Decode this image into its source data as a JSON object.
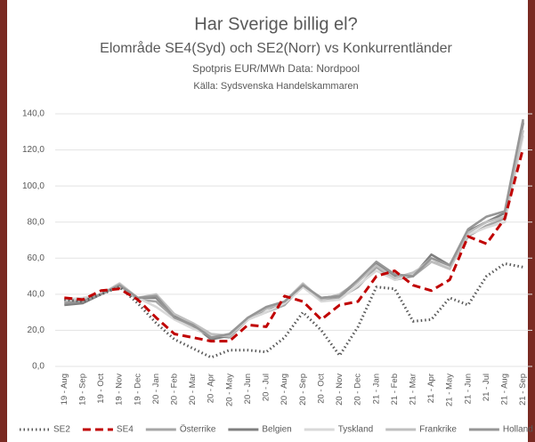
{
  "chart_data": {
    "type": "line",
    "title": "Har Sverige billig el?",
    "subtitle": "Elområde SE4(Syd) och SE2(Norr) vs Konkurrentländer",
    "y_label": "Spotpris EUR/MWh Data: Nordpool",
    "source": "Källa: Sydsvenska Handelskammaren",
    "categories": [
      "19 - Aug",
      "19 - Sep",
      "19 - Oct",
      "19 - Nov",
      "19 - Dec",
      "20 - Jan",
      "20 - Feb",
      "20 - Mar",
      "20 - Apr",
      "20 - May",
      "20 - Jun",
      "20 - Jul",
      "20 - Aug",
      "20 - Sep",
      "20 - Oct",
      "20 - Nov",
      "20 - Dec",
      "21 - Jan",
      "21 - Feb",
      "21 - Mar",
      "21 - Apr",
      "21 - May",
      "21 - Jun",
      "21 - Jul",
      "21 - Aug",
      "21 - Sep"
    ],
    "ylim": [
      0,
      140
    ],
    "yticks": [
      {
        "value": 0,
        "label": "0,0"
      },
      {
        "value": 20,
        "label": "20,0"
      },
      {
        "value": 40,
        "label": "40,0"
      },
      {
        "value": 60,
        "label": "60,0"
      },
      {
        "value": 80,
        "label": "80,0"
      },
      {
        "value": 100,
        "label": "100,0"
      },
      {
        "value": 120,
        "label": "120,0"
      },
      {
        "value": 140,
        "label": "140,0"
      }
    ],
    "grid": true,
    "legend": "bottom",
    "series": [
      {
        "name": "Österrike",
        "color": "#a6a6a6",
        "dash": "solid",
        "values": [
          36,
          37,
          40,
          45,
          37,
          36,
          27,
          22,
          17,
          16,
          26,
          30,
          34,
          45,
          37,
          38,
          44,
          55,
          48,
          50,
          58,
          55,
          72,
          78,
          82,
          136
        ]
      },
      {
        "name": "Belgien",
        "color": "#7f7f7f",
        "dash": "solid",
        "values": [
          34,
          35,
          40,
          45,
          38,
          38,
          28,
          23,
          15,
          17,
          26,
          32,
          35,
          44,
          38,
          39,
          47,
          57,
          50,
          50,
          62,
          56,
          75,
          80,
          85,
          135
        ]
      },
      {
        "name": "Tyskland",
        "color": "#d9d9d9",
        "dash": "solid",
        "values": [
          37,
          38,
          40,
          44,
          38,
          33,
          26,
          21,
          17,
          17,
          26,
          30,
          35,
          44,
          36,
          37,
          45,
          53,
          48,
          51,
          60,
          55,
          73,
          77,
          80,
          128
        ]
      },
      {
        "name": "Frankrike",
        "color": "#bfbfbf",
        "dash": "solid",
        "values": [
          36,
          37,
          40,
          46,
          38,
          40,
          29,
          24,
          18,
          17,
          27,
          32,
          36,
          46,
          37,
          40,
          47,
          56,
          49,
          52,
          58,
          54,
          74,
          80,
          83,
          131
        ]
      },
      {
        "name": "Holland",
        "color": "#969696",
        "dash": "solid",
        "values": [
          35,
          36,
          40,
          45,
          38,
          39,
          27,
          23,
          16,
          18,
          27,
          33,
          36,
          45,
          38,
          39,
          48,
          58,
          51,
          50,
          60,
          56,
          76,
          83,
          86,
          137
        ]
      },
      {
        "name": "SE2",
        "color": "#595959",
        "dash": "dotted",
        "values": [
          37,
          36,
          40,
          44,
          35,
          24,
          15,
          10,
          5,
          9,
          9,
          8,
          16,
          30,
          20,
          6,
          22,
          44,
          43,
          25,
          26,
          38,
          34,
          50,
          57,
          55
        ]
      },
      {
        "name": "SE4",
        "color": "#c00000",
        "dash": "dashed",
        "values": [
          38,
          37,
          42,
          43,
          37,
          27,
          18,
          16,
          14,
          14,
          23,
          22,
          39,
          36,
          26,
          34,
          36,
          50,
          53,
          45,
          42,
          48,
          72,
          68,
          82,
          121
        ]
      }
    ],
    "legend_order": [
      5,
      6,
      0,
      1,
      2,
      3,
      4
    ]
  }
}
